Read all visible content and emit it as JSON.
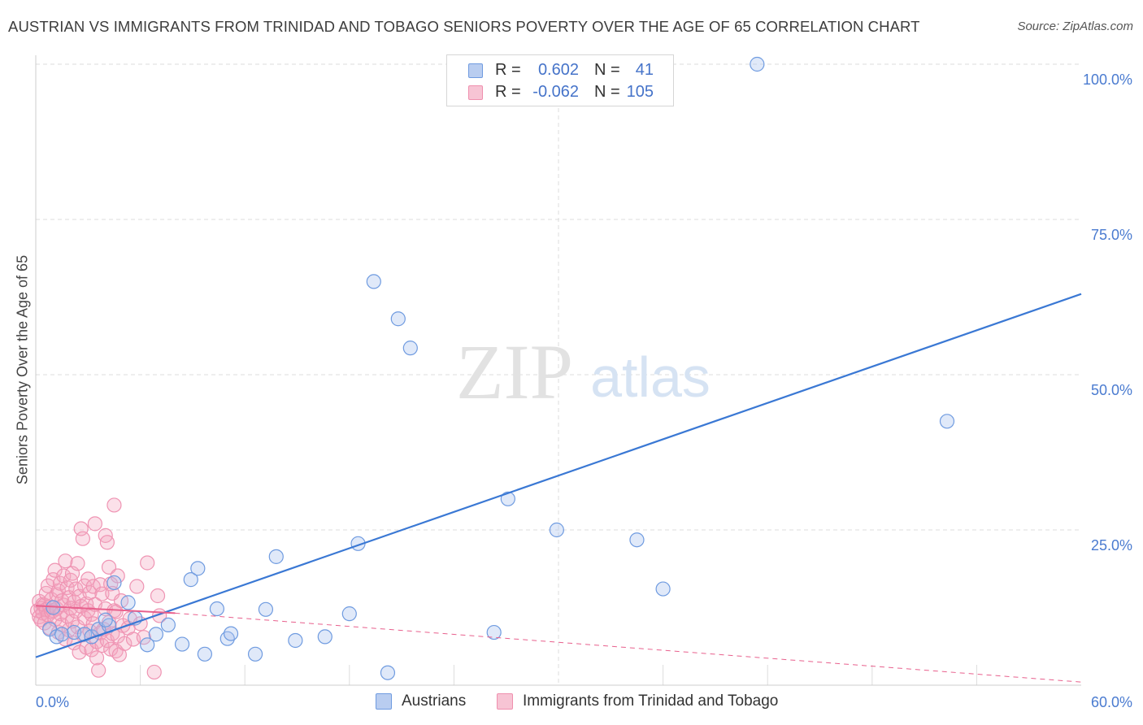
{
  "title": "AUSTRIAN VS IMMIGRANTS FROM TRINIDAD AND TOBAGO SENIORS POVERTY OVER THE AGE OF 65 CORRELATION CHART",
  "source": "Source: ZipAtlas.com",
  "watermark": {
    "zip": "ZIP",
    "atlas": "atlas"
  },
  "legend": {
    "rows": [
      {
        "r_label": "R =",
        "r_value": "0.602",
        "n_label": "N =",
        "n_value": "41",
        "color": "#6f9be0",
        "fill": "#b9cdf0"
      },
      {
        "r_label": "R =",
        "r_value": "-0.062",
        "n_label": "N =",
        "n_value": "105",
        "color": "#ef8fae",
        "fill": "#f7c4d4"
      }
    ]
  },
  "bottom_legend": {
    "austrians": "Austrians",
    "trinidad": "Immigrants from Trinidad and Tobago"
  },
  "chart_data": {
    "type": "scatter",
    "title": "AUSTRIAN VS IMMIGRANTS FROM TRINIDAD AND TOBAGO SENIORS POVERTY OVER THE AGE OF 65 CORRELATION CHART",
    "xlabel": "",
    "ylabel": "Seniors Poverty Over the Age of 65",
    "xlim": [
      0,
      60
    ],
    "ylim": [
      0,
      100
    ],
    "x_tick_labels": {
      "min": "0.0%",
      "max": "60.0%"
    },
    "y_ticks": [
      {
        "value": 100,
        "label": "100.0%"
      },
      {
        "value": 75,
        "label": "75.0%"
      },
      {
        "value": 50,
        "label": "50.0%"
      },
      {
        "value": 25,
        "label": "25.0%"
      }
    ],
    "colors": {
      "austrians": "#3a78d4",
      "trinidad": "#e8608d",
      "tick_label": "#4a7bd0"
    },
    "series": [
      {
        "name": "Austrians",
        "r": 0.602,
        "n": 41,
        "trend": [
          [
            0,
            4.5
          ],
          [
            60,
            63.0
          ]
        ],
        "points": [
          [
            0.8,
            9.0
          ],
          [
            1.2,
            7.8
          ],
          [
            1.5,
            8.2
          ],
          [
            2.2,
            8.5
          ],
          [
            2.8,
            8.2
          ],
          [
            3.2,
            7.8
          ],
          [
            3.6,
            9.0
          ],
          [
            4.2,
            9.6
          ],
          [
            4.5,
            16.5
          ],
          [
            5.3,
            13.3
          ],
          [
            5.7,
            10.8
          ],
          [
            6.4,
            6.5
          ],
          [
            6.9,
            8.2
          ],
          [
            7.6,
            9.7
          ],
          [
            8.4,
            6.6
          ],
          [
            8.9,
            17.0
          ],
          [
            9.3,
            18.8
          ],
          [
            9.7,
            5.0
          ],
          [
            10.4,
            12.3
          ],
          [
            11.0,
            7.5
          ],
          [
            11.2,
            8.3
          ],
          [
            12.6,
            5.0
          ],
          [
            13.2,
            12.2
          ],
          [
            13.8,
            20.7
          ],
          [
            14.9,
            7.2
          ],
          [
            16.6,
            7.8
          ],
          [
            18.0,
            11.5
          ],
          [
            18.5,
            22.8
          ],
          [
            19.4,
            65.0
          ],
          [
            20.2,
            2.0
          ],
          [
            20.8,
            59.0
          ],
          [
            21.5,
            54.3
          ],
          [
            26.3,
            8.5
          ],
          [
            27.1,
            30.0
          ],
          [
            29.9,
            25.0
          ],
          [
            34.5,
            23.4
          ],
          [
            36.0,
            15.5
          ],
          [
            41.4,
            100.0
          ],
          [
            52.3,
            42.5
          ],
          [
            1.0,
            12.5
          ],
          [
            4.0,
            10.5
          ]
        ]
      },
      {
        "name": "Immigrants from Trinidad and Tobago",
        "r": -0.062,
        "n": 105,
        "trend_solid": [
          [
            0,
            12.8
          ],
          [
            8,
            11.6
          ]
        ],
        "trend_dashed": [
          [
            8,
            11.6
          ],
          [
            60,
            0.5
          ]
        ],
        "points": [
          [
            0.1,
            12.0
          ],
          [
            0.2,
            13.5
          ],
          [
            0.2,
            11.0
          ],
          [
            0.3,
            12.4
          ],
          [
            0.3,
            10.5
          ],
          [
            0.4,
            13.0
          ],
          [
            0.4,
            11.6
          ],
          [
            0.5,
            12.9
          ],
          [
            0.5,
            10.0
          ],
          [
            0.6,
            12.2
          ],
          [
            0.6,
            14.8
          ],
          [
            0.7,
            11.3
          ],
          [
            0.7,
            16.0
          ],
          [
            0.8,
            12.6
          ],
          [
            0.8,
            9.2
          ],
          [
            0.9,
            13.8
          ],
          [
            0.9,
            11.8
          ],
          [
            1.0,
            17.0
          ],
          [
            1.0,
            12.0
          ],
          [
            1.1,
            18.5
          ],
          [
            1.1,
            10.6
          ],
          [
            1.2,
            14.6
          ],
          [
            1.2,
            12.3
          ],
          [
            1.3,
            15.2
          ],
          [
            1.3,
            8.5
          ],
          [
            1.4,
            16.4
          ],
          [
            1.4,
            11.5
          ],
          [
            1.5,
            13.6
          ],
          [
            1.5,
            9.7
          ],
          [
            1.6,
            17.6
          ],
          [
            1.6,
            12.9
          ],
          [
            1.7,
            20.0
          ],
          [
            1.7,
            7.4
          ],
          [
            1.8,
            15.7
          ],
          [
            1.8,
            11.1
          ],
          [
            1.9,
            14.1
          ],
          [
            1.9,
            8.9
          ],
          [
            2.0,
            16.9
          ],
          [
            2.0,
            12.4
          ],
          [
            2.1,
            18.0
          ],
          [
            2.1,
            10.3
          ],
          [
            2.2,
            13.4
          ],
          [
            2.2,
            6.8
          ],
          [
            2.3,
            15.5
          ],
          [
            2.3,
            11.9
          ],
          [
            2.4,
            19.6
          ],
          [
            2.4,
            9.4
          ],
          [
            2.5,
            14.3
          ],
          [
            2.5,
            5.3
          ],
          [
            2.6,
            25.2
          ],
          [
            2.6,
            12.7
          ],
          [
            2.7,
            23.6
          ],
          [
            2.7,
            8.1
          ],
          [
            2.8,
            16.0
          ],
          [
            2.8,
            10.8
          ],
          [
            2.9,
            13.1
          ],
          [
            2.9,
            6.1
          ],
          [
            3.0,
            17.1
          ],
          [
            3.0,
            12.0
          ],
          [
            3.1,
            14.9
          ],
          [
            3.1,
            8.7
          ],
          [
            3.2,
            11.4
          ],
          [
            3.2,
            5.7
          ],
          [
            3.3,
            15.9
          ],
          [
            3.3,
            9.9
          ],
          [
            3.4,
            26.0
          ],
          [
            3.4,
            13.0
          ],
          [
            3.5,
            7.0
          ],
          [
            3.5,
            4.4
          ],
          [
            3.6,
            2.4
          ],
          [
            3.7,
            16.2
          ],
          [
            3.7,
            8.4
          ],
          [
            3.8,
            14.7
          ],
          [
            3.8,
            6.4
          ],
          [
            3.9,
            9.0
          ],
          [
            4.0,
            24.1
          ],
          [
            4.0,
            12.3
          ],
          [
            4.1,
            23.0
          ],
          [
            4.1,
            7.2
          ],
          [
            4.2,
            19.0
          ],
          [
            4.2,
            10.1
          ],
          [
            4.3,
            16.3
          ],
          [
            4.3,
            5.8
          ],
          [
            4.4,
            14.8
          ],
          [
            4.4,
            8.3
          ],
          [
            4.5,
            29.0
          ],
          [
            4.5,
            12.0
          ],
          [
            4.6,
            11.8
          ],
          [
            4.6,
            5.5
          ],
          [
            4.7,
            17.6
          ],
          [
            4.7,
            7.9
          ],
          [
            4.8,
            4.9
          ],
          [
            4.9,
            13.6
          ],
          [
            5.0,
            9.6
          ],
          [
            5.1,
            6.7
          ],
          [
            5.3,
            9.2
          ],
          [
            5.4,
            10.7
          ],
          [
            5.6,
            7.4
          ],
          [
            5.8,
            15.9
          ],
          [
            6.0,
            9.9
          ],
          [
            6.2,
            7.7
          ],
          [
            6.4,
            19.7
          ],
          [
            6.8,
            2.1
          ],
          [
            7.0,
            14.4
          ],
          [
            7.1,
            11.2
          ]
        ]
      }
    ]
  }
}
